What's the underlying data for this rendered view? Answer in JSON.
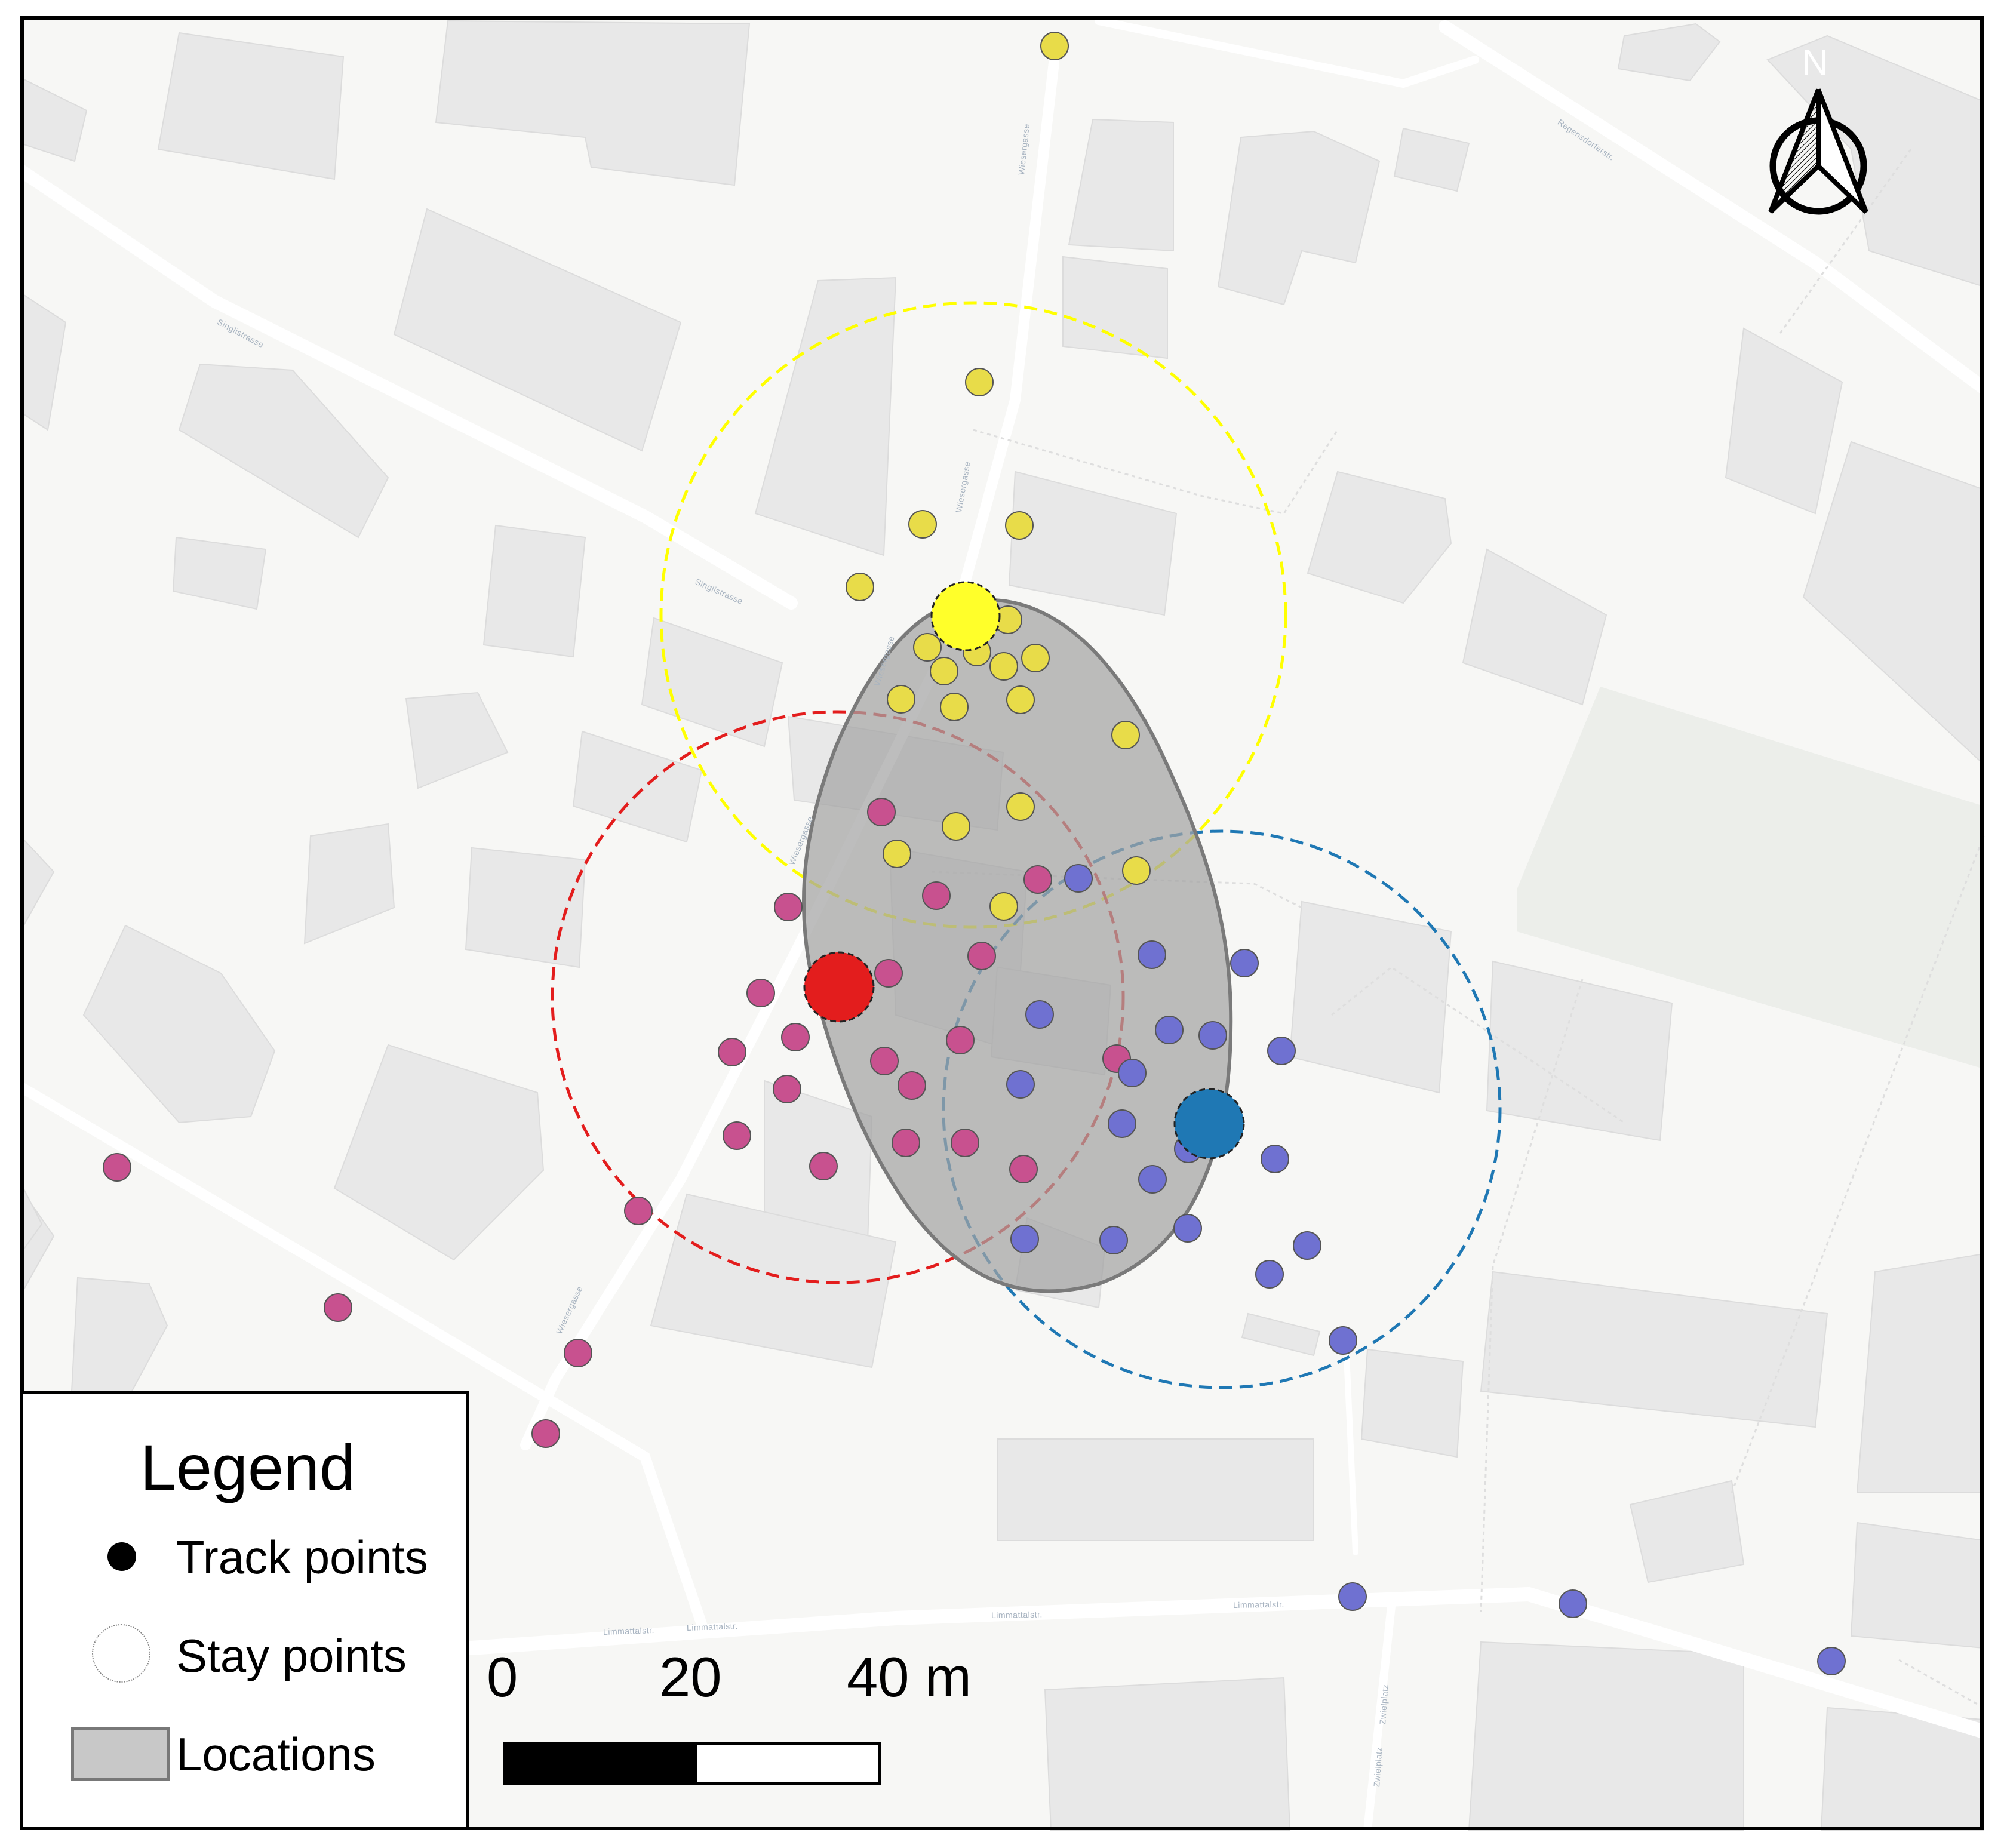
{
  "map_data": {
    "streets": [
      "Singlistrasse",
      "Singlistrasse",
      "Wiesergasse",
      "Wiesergasse",
      "Wiesergasse",
      "Wiesergasse",
      "Wiesergasse",
      "Regensdorferstr.",
      "Limmattalstr.",
      "Limmattalstr.",
      "Limmattalstr.",
      "Limmattalstr.",
      "Zwielplatz",
      "Zwielplatz"
    ],
    "colors": {
      "track_red": "#c8518f",
      "track_yellow": "#e8dc49",
      "track_blue": "#6f71d1",
      "stay_red": "#e31d1d",
      "stay_yellow": "#ffff2a",
      "stay_blue": "#1f78b4",
      "location_fill": "#a3a3a3",
      "location_stroke": "#7a7a7a",
      "basemap_bg": "#f7f7f5",
      "building": "#e9e9e9"
    }
  },
  "legend": {
    "title": "Legend",
    "track_points": "Track points",
    "stay_points": "Stay points",
    "locations": "Locations"
  },
  "scale": {
    "label_0": "0",
    "label_20": "20",
    "label_40": "40 m"
  },
  "north": {
    "letter": "N"
  }
}
